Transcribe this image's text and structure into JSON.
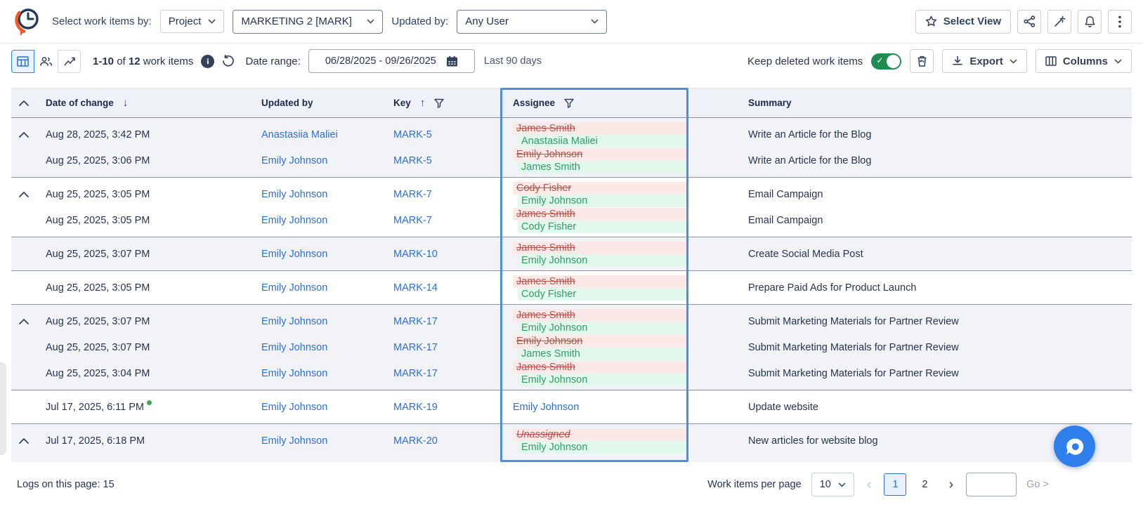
{
  "topbar": {
    "select_by_label": "Select work items by:",
    "scope_dropdown_value": "Project",
    "project_dropdown_value": "MARKETING 2 [MARK]",
    "updated_by_label": "Updated by:",
    "user_dropdown_value": "Any User",
    "select_view_button": "Select View"
  },
  "toolbar": {
    "items_range": "1-10",
    "items_of": "of",
    "items_total": "12",
    "items_suffix": "work items",
    "date_range_label": "Date range:",
    "date_range_value": "06/28/2025 - 09/26/2025",
    "date_range_preset": "Last 90 days",
    "keep_deleted_label": "Keep deleted work items",
    "keep_deleted_enabled": true,
    "export_button": "Export",
    "columns_button": "Columns"
  },
  "table": {
    "headers": {
      "date": "Date of change",
      "updated_by": "Updated by",
      "key": "Key",
      "assignee": "Assignee",
      "summary": "Summary"
    },
    "sort": {
      "date": "desc",
      "key": "asc"
    },
    "highlighted_column": "Assignee",
    "groups": [
      {
        "shade": "gray",
        "collapsible": true,
        "rows": [
          {
            "date": "Aug 28, 2025, 3:42 PM",
            "updated_by": "Anastasiia Maliei",
            "key": "MARK-5",
            "assignee_old": "James Smith",
            "assignee_new": "Anastasiia Maliei",
            "summary": "Write an Article for the Blog"
          },
          {
            "date": "Aug 25, 2025, 3:06 PM",
            "updated_by": "Emily Johnson",
            "key": "MARK-5",
            "assignee_old": "Emily Johnson",
            "assignee_new": "James Smith",
            "summary": "Write an Article for the Blog"
          }
        ]
      },
      {
        "shade": "white",
        "collapsible": true,
        "rows": [
          {
            "date": "Aug 25, 2025, 3:05 PM",
            "updated_by": "Emily Johnson",
            "key": "MARK-7",
            "assignee_old": "Cody Fisher",
            "assignee_new": "Emily Johnson",
            "summary": "Email Campaign"
          },
          {
            "date": "Aug 25, 2025, 3:05 PM",
            "updated_by": "Emily Johnson",
            "key": "MARK-7",
            "assignee_old": "James Smith",
            "assignee_new": "Cody Fisher",
            "summary": "Email Campaign"
          }
        ]
      },
      {
        "shade": "gray",
        "collapsible": false,
        "rows": [
          {
            "date": "Aug 25, 2025, 3:07 PM",
            "updated_by": "Emily Johnson",
            "key": "MARK-10",
            "assignee_old": "James Smith",
            "assignee_new": "Emily Johnson",
            "summary": "Create Social Media Post"
          }
        ]
      },
      {
        "shade": "white",
        "collapsible": false,
        "rows": [
          {
            "date": "Aug 25, 2025, 3:05 PM",
            "updated_by": "Emily Johnson",
            "key": "MARK-14",
            "assignee_old": "James Smith",
            "assignee_new": "Cody Fisher",
            "summary": "Prepare Paid Ads for Product Launch"
          }
        ]
      },
      {
        "shade": "gray",
        "collapsible": true,
        "rows": [
          {
            "date": "Aug 25, 2025, 3:07 PM",
            "updated_by": "Emily Johnson",
            "key": "MARK-17",
            "assignee_old": "James Smith",
            "assignee_new": "Emily Johnson",
            "summary": "Submit Marketing Materials for Partner Review"
          },
          {
            "date": "Aug 25, 2025, 3:07 PM",
            "updated_by": "Emily Johnson",
            "key": "MARK-17",
            "assignee_old": "Emily Johnson",
            "assignee_new": "James Smith",
            "summary": "Submit Marketing Materials for Partner Review"
          },
          {
            "date": "Aug 25, 2025, 3:04 PM",
            "updated_by": "Emily Johnson",
            "key": "MARK-17",
            "assignee_old": "James Smith",
            "assignee_new": "Emily Johnson",
            "summary": "Submit Marketing Materials for Partner Review"
          }
        ]
      },
      {
        "shade": "white",
        "collapsible": false,
        "rows": [
          {
            "date": "Jul 17, 2025, 6:11 PM",
            "new_indicator": true,
            "updated_by": "Emily Johnson",
            "key": "MARK-19",
            "assignee_current": "Emily Johnson",
            "summary": "Update website"
          }
        ]
      },
      {
        "shade": "gray",
        "collapsible": true,
        "rows": [
          {
            "date": "Jul 17, 2025, 6:18 PM",
            "updated_by": "Emily Johnson",
            "key": "MARK-20",
            "assignee_old": "Unassigned",
            "assignee_old_italic": true,
            "assignee_new": "Emily Johnson",
            "summary": "New articles for website blog"
          }
        ]
      }
    ]
  },
  "footer": {
    "logs_label": "Logs on this page:",
    "logs_value": "15",
    "per_page_label": "Work items per page",
    "per_page_value": "10",
    "pages": [
      "1",
      "2"
    ],
    "active_page": "1",
    "go_label": "Go >"
  },
  "colors": {
    "accent_blue": "#2d6fd2",
    "highlight_border": "#4b8fe2",
    "removed_text": "#b5524a",
    "removed_bg": "#fbe9e7",
    "added_text": "#2e9e68",
    "added_bg": "#e2f8ec",
    "toggle_on": "#1f8c52",
    "new_dot": "#34a853",
    "fab_bg": "#2e7fec"
  }
}
